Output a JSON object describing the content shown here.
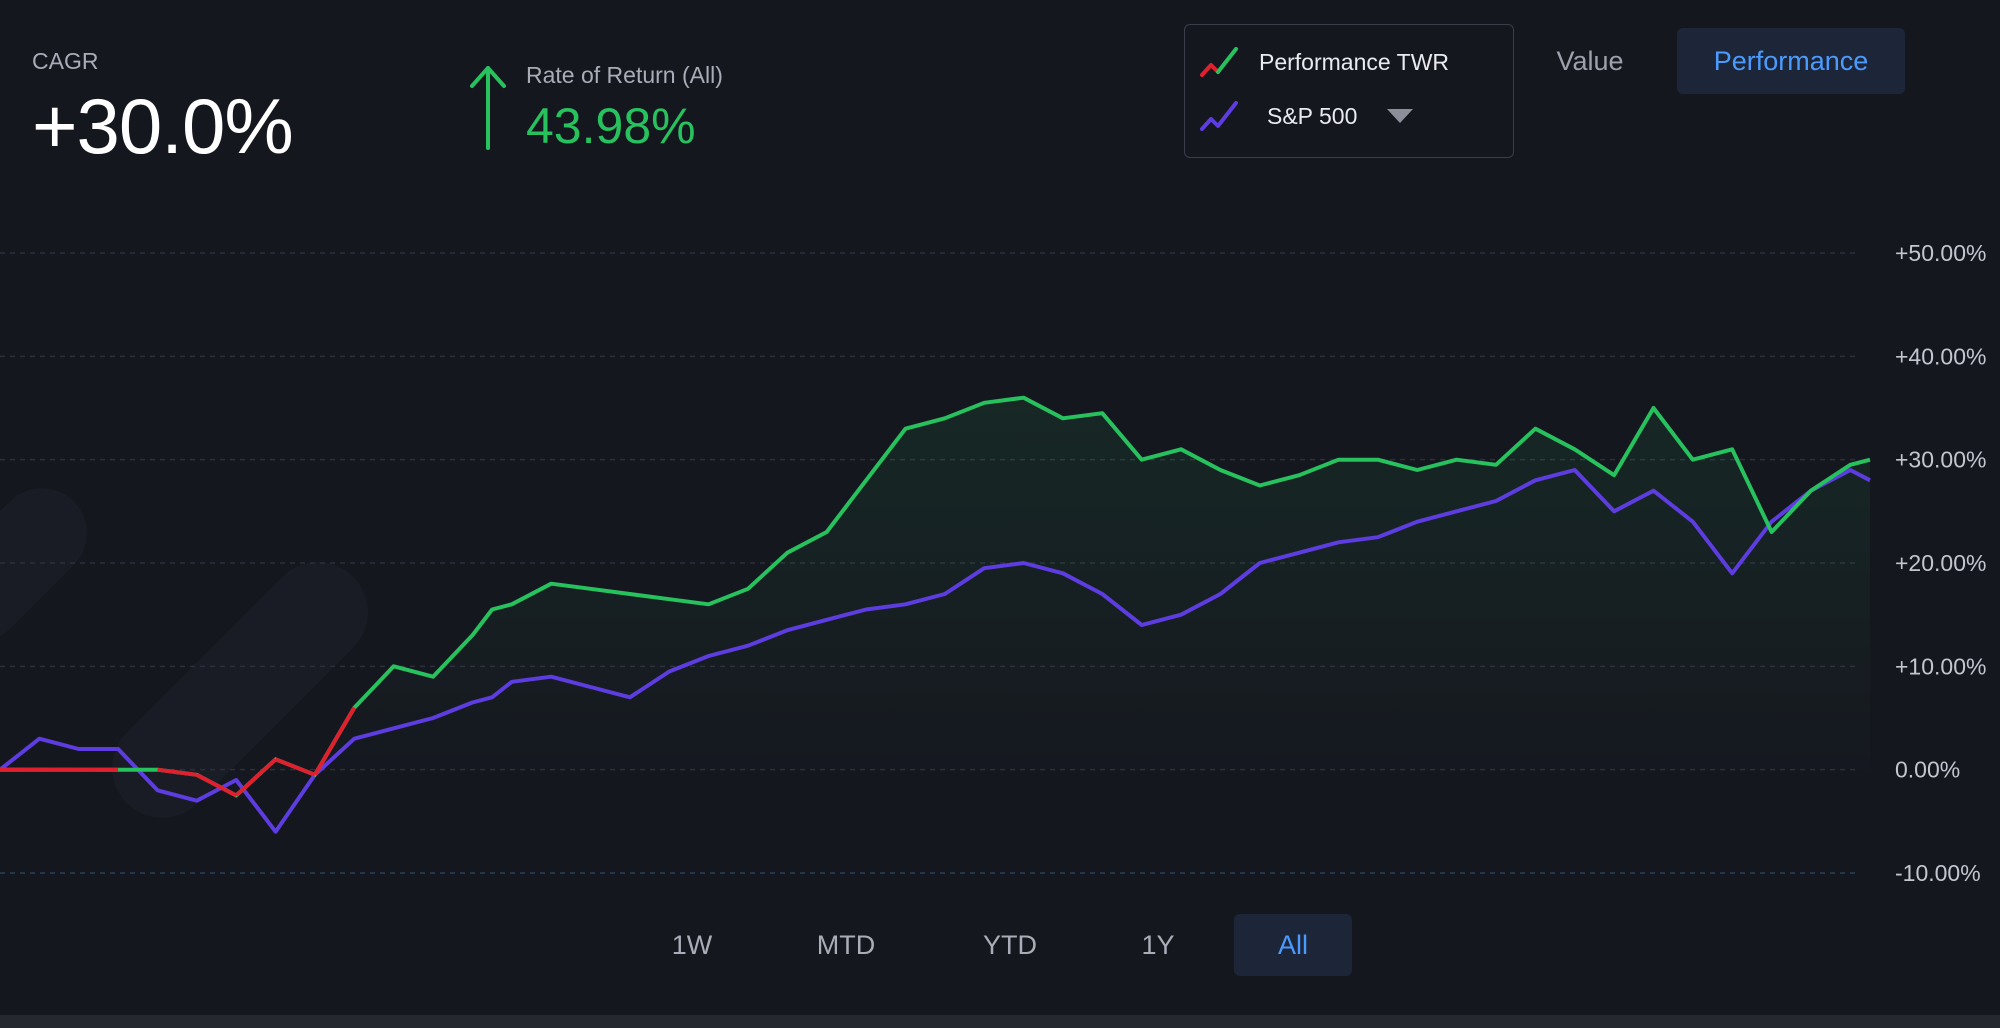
{
  "cagr": {
    "label": "CAGR",
    "value": "+30.0%"
  },
  "rate_of_return": {
    "label": "Rate of Return (All)",
    "value": "43.98%"
  },
  "legend": {
    "items": [
      {
        "label": "Performance TWR",
        "icon": "trend-line-icon",
        "colors": [
          "#e0202e",
          "#27c15d"
        ]
      },
      {
        "label": "S&P 500",
        "icon": "trend-line-icon",
        "color": "#5d3ce0"
      }
    ]
  },
  "view_toggle": {
    "options": [
      "Value",
      "Performance"
    ],
    "selected": "Performance"
  },
  "range_buttons": {
    "options": [
      "1W",
      "MTD",
      "YTD",
      "1Y",
      "All"
    ],
    "selected": "All"
  },
  "colors": {
    "background": "#15171f",
    "portfolio": "#27c15d",
    "portfolio_negative": "#e0202e",
    "benchmark": "#5d3ce0",
    "accent": "#4b9bff"
  },
  "chart_data": {
    "type": "line",
    "title": "",
    "xlabel": "",
    "ylabel": "",
    "ylim": [
      -10,
      50
    ],
    "yticks": [
      "+50.00%",
      "+40.00%",
      "+30.00%",
      "+20.00%",
      "+10.00%",
      "0.00%",
      "-10.00%"
    ],
    "ytick_values": [
      50,
      40,
      30,
      20,
      10,
      0,
      -10
    ],
    "x": [
      0,
      10,
      20,
      30,
      40,
      50,
      60,
      70,
      80,
      90,
      100,
      110,
      120,
      125,
      130,
      140,
      150,
      160,
      170,
      180,
      190,
      200,
      210,
      220,
      230,
      240,
      250,
      260,
      270,
      280,
      290,
      300,
      310,
      320,
      330,
      340,
      350,
      360,
      370,
      380,
      390,
      400,
      410,
      420,
      430,
      440,
      450,
      460,
      470,
      475
    ],
    "series": [
      {
        "name": "Performance TWR",
        "values": [
          0,
          0,
          0,
          0,
          0,
          -0.5,
          -2.5,
          1,
          -0.5,
          6,
          10,
          9,
          13,
          15.5,
          16,
          18,
          17.5,
          17,
          16.5,
          16,
          17.5,
          21,
          23,
          28,
          33,
          34,
          35.5,
          36,
          34,
          34.5,
          30,
          31,
          29,
          27.5,
          28.5,
          30,
          30,
          29,
          30,
          29.5,
          33,
          31,
          28.5,
          35,
          30,
          31,
          23,
          27,
          29.5,
          30
        ]
      },
      {
        "name": "S&P 500",
        "values": [
          0,
          3,
          2,
          2,
          -2,
          -3,
          -1,
          -6,
          -0.5,
          3,
          4,
          5,
          6.5,
          7,
          8.5,
          9,
          8,
          7,
          9.5,
          11,
          12,
          13.5,
          14.5,
          15.5,
          16,
          17,
          19.5,
          20,
          19,
          17,
          14,
          15,
          17,
          20,
          21,
          22,
          22.5,
          24,
          25,
          26,
          28,
          29,
          25,
          27,
          24,
          19,
          24,
          27,
          29,
          28
        ]
      }
    ]
  }
}
